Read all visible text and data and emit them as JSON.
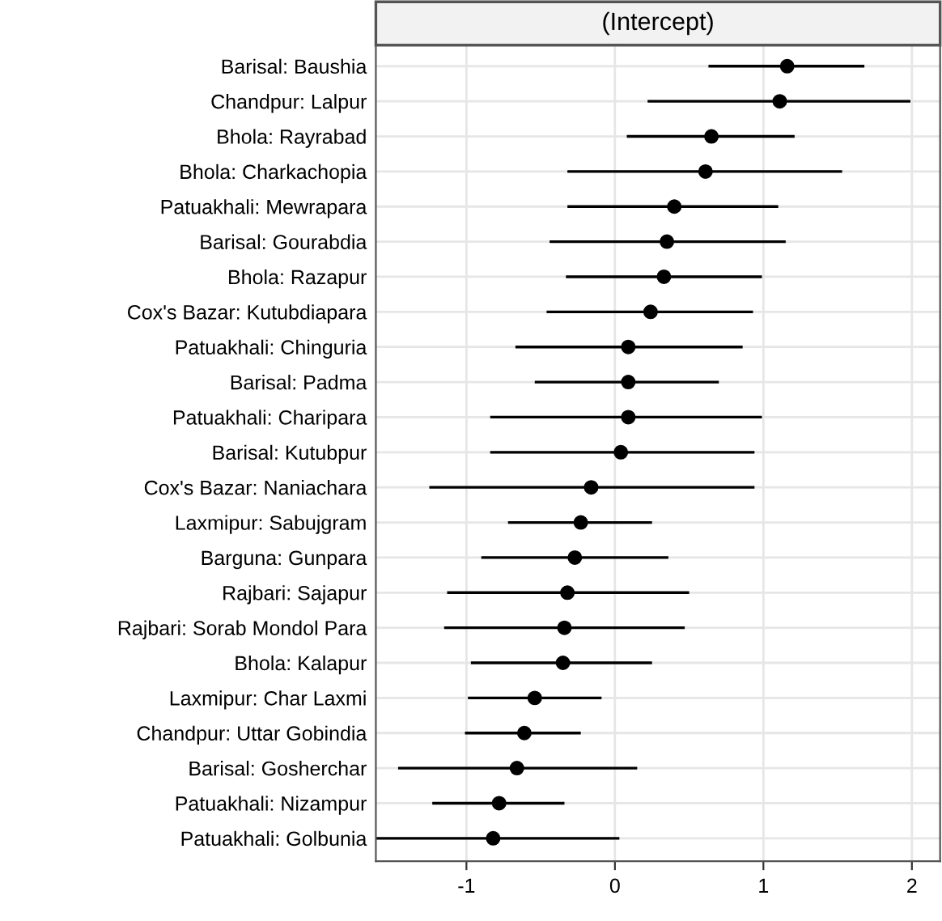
{
  "chart_data": {
    "type": "scatter",
    "title": "(Intercept)",
    "orientation": "horizontal",
    "categories": [
      "Barisal: Baushia",
      "Chandpur: Lalpur",
      "Bhola: Rayrabad",
      "Bhola: Charkachopia",
      "Patuakhali: Mewrapara",
      "Barisal: Gourabdia",
      "Bhola: Razapur",
      "Cox's Bazar: Kutubdiapara",
      "Patuakhali: Chinguria",
      "Barisal: Padma",
      "Patuakhali: Charipara",
      "Barisal: Kutubpur",
      "Cox's Bazar: Naniachara",
      "Laxmipur: Sabujgram",
      "Barguna: Gunpara",
      "Rajbari: Sajapur",
      "Rajbari: Sorab Mondol Para",
      "Bhola: Kalapur",
      "Laxmipur: Char Laxmi",
      "Chandpur: Uttar Gobindia",
      "Barisal: Gosherchar",
      "Patuakhali: Nizampur",
      "Patuakhali: Golbunia"
    ],
    "series": [
      {
        "color": "#000000",
        "values": [
          1.16,
          1.11,
          0.65,
          0.61,
          0.4,
          0.35,
          0.33,
          0.24,
          0.09,
          0.09,
          0.09,
          0.04,
          -0.16,
          -0.23,
          -0.27,
          -0.32,
          -0.34,
          -0.35,
          -0.54,
          -0.61,
          -0.66,
          -0.78,
          -0.82
        ],
        "errors": [
          [
            0.63,
            1.68
          ],
          [
            0.22,
            1.99
          ],
          [
            0.08,
            1.21
          ],
          [
            -0.32,
            1.53
          ],
          [
            -0.32,
            1.1
          ],
          [
            -0.44,
            1.15
          ],
          [
            -0.33,
            0.99
          ],
          [
            -0.46,
            0.93
          ],
          [
            -0.67,
            0.86
          ],
          [
            -0.54,
            0.7
          ],
          [
            -0.84,
            0.99
          ],
          [
            -0.84,
            0.94
          ],
          [
            -1.25,
            0.94
          ],
          [
            -0.72,
            0.25
          ],
          [
            -0.9,
            0.36
          ],
          [
            -1.13,
            0.5
          ],
          [
            -1.15,
            0.47
          ],
          [
            -0.97,
            0.25
          ],
          [
            -0.99,
            -0.09
          ],
          [
            -1.01,
            -0.23
          ],
          [
            -1.46,
            0.15
          ],
          [
            -1.23,
            -0.34
          ],
          [
            -1.66,
            0.03
          ]
        ]
      }
    ],
    "xlim": [
      -1.61,
      2.19
    ],
    "xticks": [
      -1,
      0,
      1,
      2
    ],
    "grid": true,
    "marker": "circle"
  }
}
